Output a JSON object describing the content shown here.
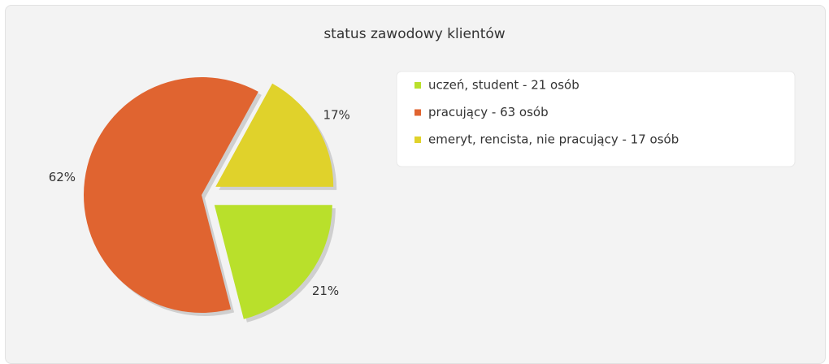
{
  "chart_data": {
    "type": "pie",
    "title": "status zawodowy klientów",
    "categories": [
      "uczeń, student - 21 osób",
      "pracujący - 63 osób",
      "emeryt, rencista, nie pracujący - 17 osób"
    ],
    "values": [
      21,
      62,
      17
    ],
    "value_labels": [
      "21%",
      "62%",
      "17%"
    ],
    "colors": [
      "#b9e02b",
      "#e06430",
      "#e0d22b"
    ],
    "exploded": [
      true,
      false,
      true
    ],
    "legend": "top-right"
  }
}
